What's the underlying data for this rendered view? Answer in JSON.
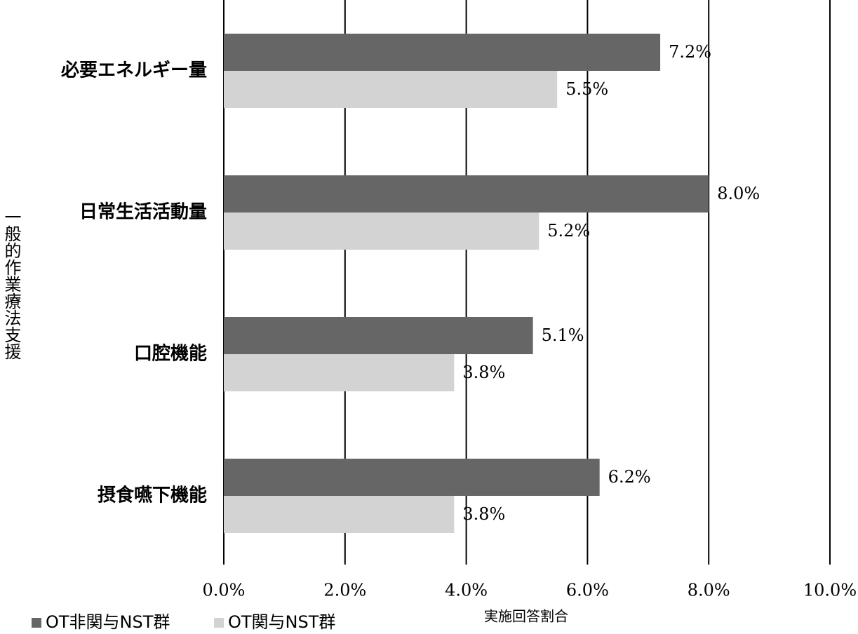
{
  "chart_data": {
    "type": "hbar",
    "x_label": "実施回答割合",
    "y_label": "一般的作業療法支援",
    "categories": [
      "必要エネルギー量",
      "日常生活活動量",
      "口腔機能",
      "摂食嚥下機能"
    ],
    "series": [
      {
        "name": "OT非関与NST群",
        "color": "#666666",
        "values": [
          7.2,
          8.0,
          5.1,
          6.2
        ],
        "value_labels": [
          "7.2%",
          "8.0%",
          "5.1%",
          "6.2%"
        ]
      },
      {
        "name": "OT関与NST群",
        "color": "#d3d3d3",
        "values": [
          5.5,
          5.2,
          3.8,
          3.8
        ],
        "value_labels": [
          "5.5%",
          "5.2%",
          "3.8%",
          "3.8%"
        ]
      }
    ],
    "xlim": [
      0,
      10
    ],
    "xticks": [
      {
        "value": 0,
        "label": "0.0%"
      },
      {
        "value": 2,
        "label": "2.0%"
      },
      {
        "value": 4,
        "label": "4.0%"
      },
      {
        "value": 6,
        "label": "6.0%"
      },
      {
        "value": 8,
        "label": "8.0%"
      },
      {
        "value": 10,
        "label": "10.0%"
      }
    ],
    "grid": true,
    "legend": "bottom-left"
  }
}
